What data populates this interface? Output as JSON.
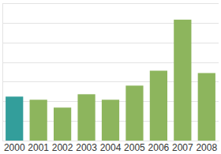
{
  "chart_data": {
    "type": "bar",
    "categories": [
      "2000",
      "2001",
      "2002",
      "2003",
      "2004",
      "2005",
      "2006",
      "2007",
      "2008"
    ],
    "values": [
      2.24,
      2.08,
      1.68,
      2.36,
      2.08,
      2.8,
      3.56,
      6.16,
      3.44
    ],
    "colors": [
      "#339e9b",
      "#8db55d",
      "#8db55d",
      "#8db55d",
      "#8db55d",
      "#8db55d",
      "#8db55d",
      "#8db55d",
      "#8db55d"
    ],
    "ylim": [
      0,
      7
    ],
    "yticks": [
      0,
      1,
      2,
      3,
      4,
      5,
      6,
      7
    ],
    "grid": true,
    "tick_labels": "x"
  }
}
